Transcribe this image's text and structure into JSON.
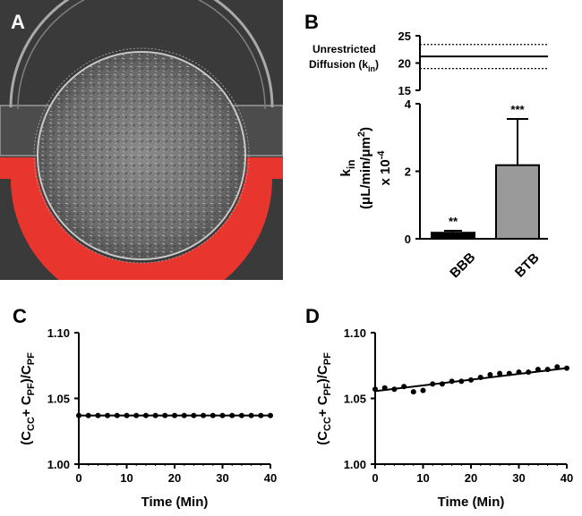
{
  "colors": {
    "micrograph_bg": "#3a3a3a",
    "channel_red": "#e8352e",
    "bar_bbb": "#000000",
    "bar_btb": "#9a9a9a",
    "axis": "#000000"
  },
  "panel_a": {
    "letter": "A",
    "image_description_icon": "microfluidic-chamber-micrograph"
  },
  "chart_data": [
    {
      "id": "B",
      "type": "bar",
      "letter": "B",
      "ylabel": [
        "k",
        "in",
        "(μL/min/μm",
        "2",
        ")",
        "x 10",
        "-4"
      ],
      "categories": [
        "BBB",
        "BTB"
      ],
      "values": [
        0.18,
        2.18
      ],
      "errors": [
        0.06,
        1.37
      ],
      "significance": [
        "**",
        "***"
      ],
      "ylim_lower": [
        0,
        4
      ],
      "yticks_lower": [
        "0",
        "2",
        "4"
      ],
      "ylim_upper": [
        15,
        25
      ],
      "yticks_upper": [
        "15",
        "20",
        "25"
      ],
      "reference": {
        "label_line1": "Unrestricted",
        "label_line2": "Diffusion (k",
        "label_sub": "in",
        "label_close": ")",
        "mean": 21.2,
        "upper": 23.4,
        "lower": 19.0
      }
    },
    {
      "id": "C",
      "type": "scatter",
      "letter": "C",
      "xlabel": "Time (Min)",
      "ylabel_parts": [
        "(C",
        "CC",
        "+ C",
        "PF",
        ")/C",
        "PF"
      ],
      "xlim": [
        0,
        40
      ],
      "ylim": [
        1.0,
        1.1
      ],
      "xticks": [
        "0",
        "10",
        "20",
        "30",
        "40"
      ],
      "yticks": [
        "1.00",
        "1.05",
        "1.10"
      ],
      "x": [
        0,
        2,
        4,
        6,
        8,
        10,
        12,
        14,
        16,
        18,
        20,
        22,
        24,
        26,
        28,
        30,
        32,
        34,
        36,
        38,
        40
      ],
      "y": [
        1.037,
        1.037,
        1.037,
        1.037,
        1.037,
        1.037,
        1.037,
        1.037,
        1.037,
        1.037,
        1.037,
        1.037,
        1.037,
        1.037,
        1.037,
        1.037,
        1.037,
        1.037,
        1.037,
        1.037,
        1.037
      ],
      "fit": {
        "slope": 0.0,
        "intercept": 1.037
      }
    },
    {
      "id": "D",
      "type": "scatter",
      "letter": "D",
      "xlabel": "Time (Min)",
      "ylabel_parts": [
        "(C",
        "CC",
        "+ C",
        "PF",
        ")/C",
        "PF"
      ],
      "xlim": [
        0,
        40
      ],
      "ylim": [
        1.0,
        1.1
      ],
      "xticks": [
        "0",
        "10",
        "20",
        "30",
        "40"
      ],
      "yticks": [
        "1.00",
        "1.05",
        "1.10"
      ],
      "x": [
        0,
        2,
        4,
        6,
        8,
        10,
        12,
        14,
        16,
        18,
        20,
        22,
        24,
        26,
        28,
        30,
        32,
        34,
        36,
        38,
        40
      ],
      "y": [
        1.057,
        1.058,
        1.057,
        1.059,
        1.055,
        1.056,
        1.061,
        1.061,
        1.063,
        1.063,
        1.064,
        1.066,
        1.068,
        1.069,
        1.069,
        1.07,
        1.07,
        1.072,
        1.072,
        1.074,
        1.073
      ],
      "fit": {
        "slope": 0.000438,
        "intercept": 1.0555
      }
    }
  ]
}
